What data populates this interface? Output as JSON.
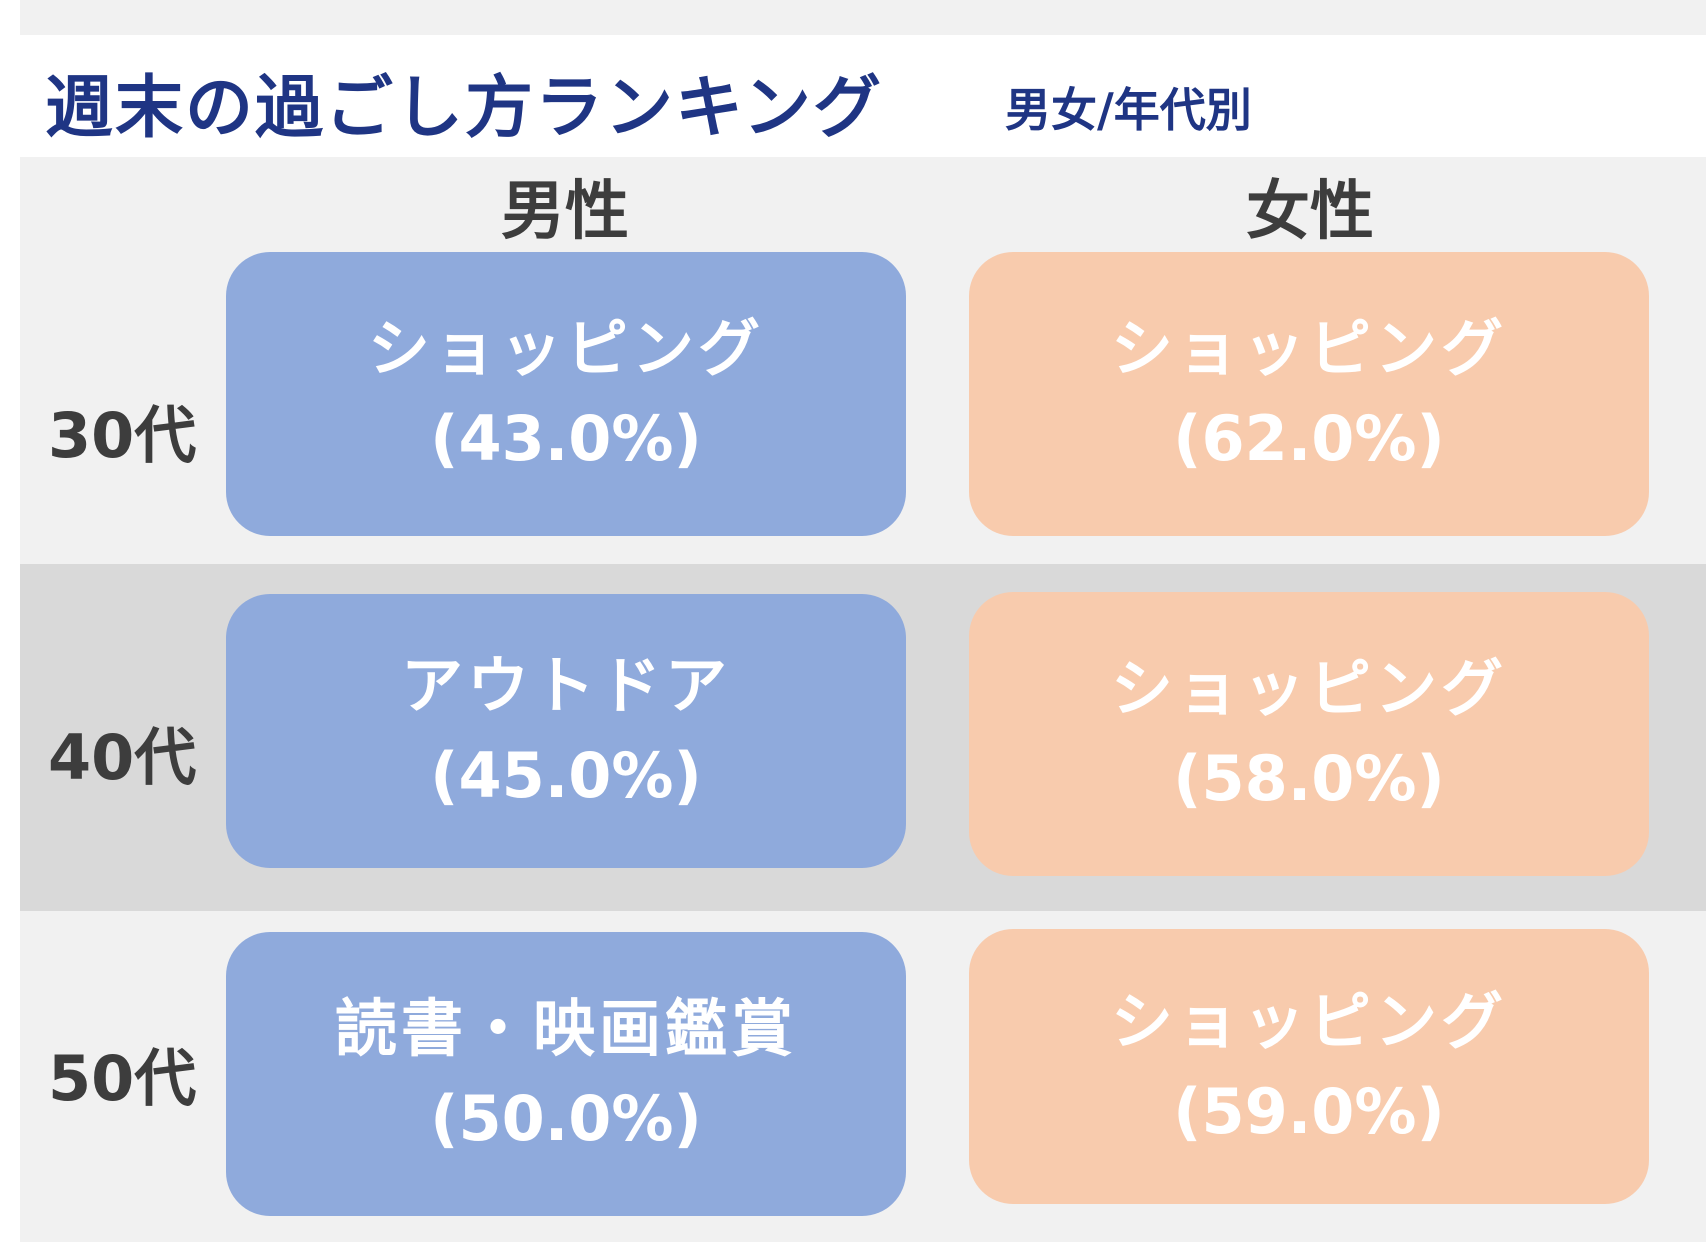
{
  "title": "週末の過ごし方ランキング",
  "subtitle": "男女/年代別",
  "columns": {
    "male": "男性",
    "female": "女性"
  },
  "colors": {
    "title": "#1f3584",
    "male_card": "#8faadc",
    "female_card": "#f8cbad",
    "band_light": "#f1f1f1",
    "band_dark": "#d9d9d9",
    "label_text": "#3d3d3d",
    "card_text": "#ffffff"
  },
  "rows": [
    {
      "age": "30代",
      "male": {
        "activity": "ショッピング",
        "percent": "(43.0%)"
      },
      "female": {
        "activity": "ショッピング",
        "percent": "(62.0%)"
      }
    },
    {
      "age": "40代",
      "male": {
        "activity": "アウトドア",
        "percent": "(45.0%)"
      },
      "female": {
        "activity": "ショッピング",
        "percent": "(58.0%)"
      }
    },
    {
      "age": "50代",
      "male": {
        "activity": "読書・映画鑑賞",
        "percent": "(50.0%)"
      },
      "female": {
        "activity": "ショッピング",
        "percent": "(59.0%)"
      }
    }
  ]
}
